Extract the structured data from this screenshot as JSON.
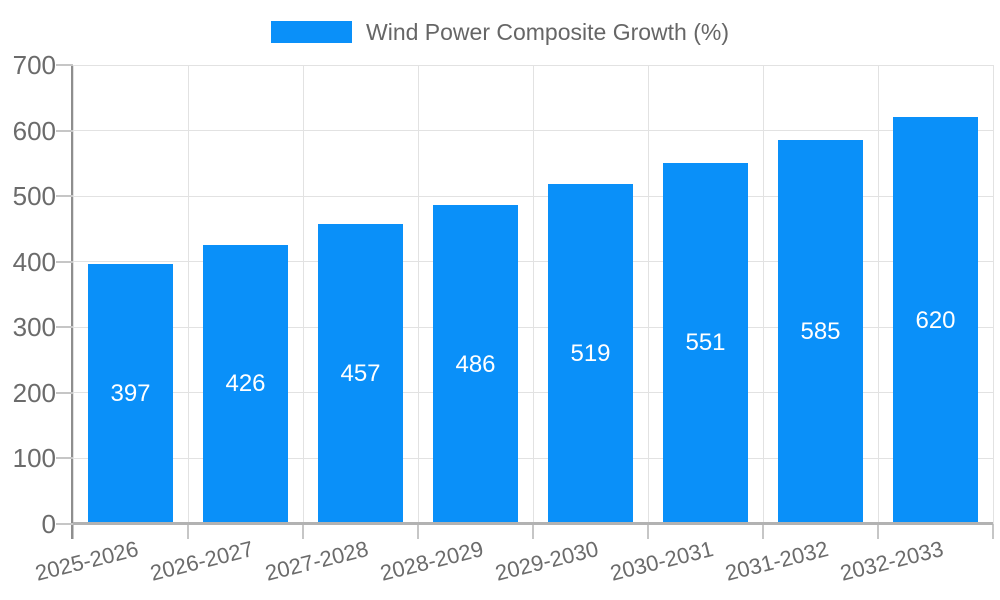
{
  "chart_data": {
    "type": "bar",
    "title": "",
    "legend_entries": [
      "Wind Power Composite Growth (%)"
    ],
    "legend_position": "top",
    "categories": [
      "2025-2026",
      "2026-2027",
      "2027-2028",
      "2028-2029",
      "2029-2030",
      "2030-2031",
      "2031-2032",
      "2032-2033"
    ],
    "values": [
      397,
      426,
      457,
      486,
      519,
      551,
      585,
      620
    ],
    "xlabel": "",
    "ylabel": "",
    "ylim": [
      0,
      700
    ],
    "ytick_step": 100,
    "yticks": [
      0,
      100,
      200,
      300,
      400,
      500,
      600,
      700
    ],
    "grid": true,
    "bar_labels_inside": true,
    "colors": {
      "bar": "#0a90f9",
      "bar_label_text": "#ffffff",
      "axis_text": "#6b6b6b",
      "grid_line": "#e2e2e2",
      "tick_mark": "#c6c6c6",
      "y_axis_line": "#8e8e8e",
      "x_axis_line": "#b2b2b2"
    }
  }
}
